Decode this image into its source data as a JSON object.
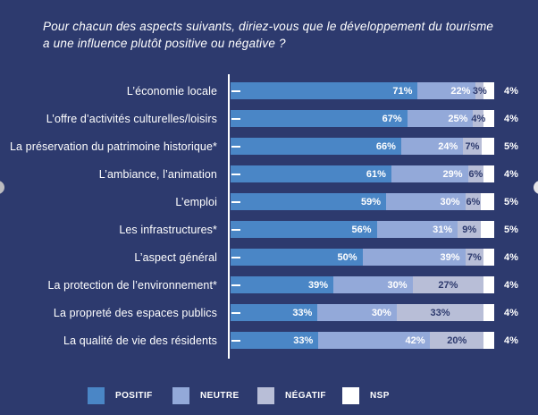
{
  "title": {
    "line1": "Pour chacun des aspects suivants, diriez-vous que le développement du tourisme",
    "line2": "a une influence plutôt positive ou négative ?"
  },
  "colors": {
    "background": "#2d3a6e",
    "positif": "#4a86c6",
    "neutre": "#93a9d9",
    "negatif": "#b8bed7",
    "nsp": "#ffffff",
    "text": "#ffffff"
  },
  "chart_data": {
    "type": "bar",
    "orientation": "horizontal",
    "stacked": true,
    "unit": "%",
    "grid": false,
    "legend_position": "bottom",
    "categories": [
      "L’économie locale",
      "L’offre d’activités culturelles/loisirs",
      "La préservation du patrimoine historique*",
      "L’ambiance, l’animation",
      "L’emploi",
      "Les infrastructures*",
      "L’aspect général",
      "La protection de l’environnement*",
      "La propreté des espaces publics",
      "La qualité de vie des résidents"
    ],
    "series": [
      {
        "name": "POSITIF",
        "color_key": "positif",
        "values": [
          71,
          67,
          66,
          61,
          59,
          56,
          50,
          39,
          33,
          33
        ]
      },
      {
        "name": "NEUTRE",
        "color_key": "neutre",
        "values": [
          22,
          25,
          24,
          29,
          30,
          31,
          39,
          30,
          30,
          42
        ]
      },
      {
        "name": "NÉGATIF",
        "color_key": "negatif",
        "values": [
          3,
          4,
          7,
          6,
          6,
          9,
          7,
          27,
          33,
          20
        ]
      },
      {
        "name": "NSP",
        "color_key": "nsp",
        "values": [
          4,
          4,
          5,
          4,
          5,
          5,
          4,
          4,
          4,
          4
        ]
      }
    ]
  },
  "legend": {
    "items": [
      {
        "label": "POSITIF",
        "color_key": "positif"
      },
      {
        "label": "NEUTRE",
        "color_key": "neutre"
      },
      {
        "label": "NÉGATIF",
        "color_key": "negatif"
      },
      {
        "label": "NSP",
        "color_key": "nsp"
      }
    ]
  }
}
